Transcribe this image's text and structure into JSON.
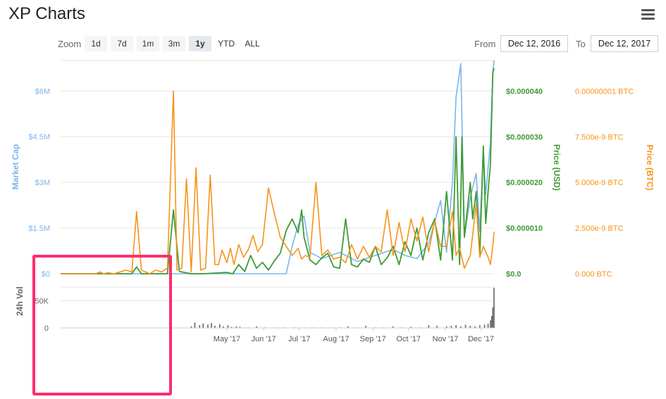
{
  "header": {
    "title": "XP Charts"
  },
  "toolbar": {
    "zoom_label": "Zoom",
    "zoom_buttons": [
      "1d",
      "7d",
      "1m",
      "3m",
      "1y",
      "YTD",
      "ALL"
    ],
    "active_zoom": "1y",
    "from_label": "From",
    "from_value": "Dec 12, 2016",
    "to_label": "To",
    "to_value": "Dec 12, 2017"
  },
  "chart_data": {
    "type": "line",
    "x_ticks": [
      "May '17",
      "Jun '17",
      "Jul '17",
      "Aug '17",
      "Sep '17",
      "Oct '17",
      "Nov '17",
      "Dec '17"
    ],
    "x_tick_days": [
      140,
      171,
      201,
      232,
      263,
      293,
      324,
      354
    ],
    "x_range": [
      0,
      365
    ],
    "axes": {
      "market_cap": {
        "label": "Market Cap",
        "ticks": [
          "$0",
          "$1.5M",
          "$3M",
          "$4.5M",
          "$6M"
        ],
        "tick_values": [
          0,
          1.5,
          3,
          4.5,
          6
        ],
        "range": [
          0,
          7
        ],
        "color": "#7cb5ec"
      },
      "price_usd": {
        "label": "Price (USD)",
        "ticks": [
          "$0.0",
          "$0.000010",
          "$0.000020",
          "$0.000030",
          "$0.000040"
        ],
        "tick_values": [
          0,
          10,
          20,
          30,
          40
        ],
        "range": [
          0,
          46.7
        ],
        "color": "#3d9b35"
      },
      "price_btc": {
        "label": "Price (BTC)",
        "ticks": [
          "0.000 BTC",
          "2.500e-9 BTC",
          "5.000e-9 BTC",
          "7.500e-9 BTC",
          "0.00000001 BTC"
        ],
        "tick_values": [
          0,
          2.5,
          5,
          7.5,
          10
        ],
        "range": [
          0,
          11.67
        ],
        "color": "#f7931a"
      },
      "volume": {
        "label": "24h Vol",
        "ticks": [
          "0",
          "50K"
        ],
        "tick_values": [
          0,
          50
        ],
        "range": [
          0,
          75
        ],
        "color": "#666666"
      }
    },
    "series": [
      {
        "name": "Market Cap",
        "axis": "market_cap",
        "color": "#7cb5ec",
        "x": [
          0,
          180,
          190,
          195,
          200,
          205,
          210,
          220,
          235,
          250,
          265,
          280,
          290,
          300,
          310,
          320,
          325,
          330,
          333,
          337,
          340,
          345,
          350,
          353,
          356,
          358,
          360,
          362,
          364,
          365
        ],
        "values": [
          0,
          0,
          0,
          0.9,
          1.6,
          1.9,
          0.7,
          0.5,
          0.7,
          0.4,
          0.6,
          0.8,
          0.6,
          0.5,
          1.0,
          2.4,
          0.7,
          3.0,
          5.8,
          6.9,
          1.2,
          2.5,
          3.3,
          1.4,
          4.0,
          2.6,
          3.5,
          4.3,
          6.6,
          7.0
        ]
      },
      {
        "name": "Price (USD)",
        "axis": "price_usd",
        "color": "#3d9b35",
        "x": [
          0,
          30,
          60,
          64,
          68,
          90,
          95,
          100,
          110,
          120,
          140,
          145,
          150,
          155,
          160,
          165,
          170,
          175,
          180,
          185,
          190,
          195,
          200,
          203,
          205,
          208,
          210,
          215,
          220,
          225,
          230,
          235,
          240,
          245,
          250,
          255,
          260,
          265,
          270,
          275,
          280,
          285,
          290,
          295,
          300,
          305,
          310,
          315,
          320,
          325,
          330,
          333,
          336,
          338,
          340,
          345,
          347,
          350,
          353,
          356,
          358,
          360,
          362,
          364,
          365
        ],
        "values": [
          0,
          0,
          0,
          1.5,
          0,
          0,
          14,
          0.5,
          0,
          0,
          0.3,
          0,
          2,
          0.5,
          4,
          1.2,
          2.5,
          0.8,
          2.8,
          4.5,
          9.5,
          12,
          9,
          14,
          8,
          5,
          3,
          2,
          3.5,
          4.5,
          1.5,
          1.2,
          12,
          2,
          1.5,
          3.2,
          2.5,
          6,
          2,
          3.5,
          6,
          2,
          7,
          4,
          10,
          3,
          9,
          12,
          3,
          18,
          3,
          30,
          2,
          30,
          8,
          20,
          12,
          18,
          4,
          28,
          11,
          18,
          24,
          44,
          45
        ]
      },
      {
        "name": "Price (BTC)",
        "axis": "price_btc",
        "color": "#f7931a",
        "x": [
          0,
          30,
          33,
          36,
          40,
          45,
          55,
          60,
          64,
          68,
          75,
          80,
          85,
          90,
          95,
          98,
          102,
          106,
          110,
          114,
          118,
          122,
          126,
          130,
          133,
          136,
          140,
          143,
          146,
          150,
          154,
          158,
          162,
          166,
          170,
          175,
          180,
          185,
          190,
          195,
          200,
          203,
          206,
          210,
          215,
          220,
          225,
          230,
          235,
          240,
          245,
          250,
          255,
          260,
          265,
          270,
          275,
          280,
          285,
          290,
          295,
          300,
          305,
          310,
          315,
          320,
          325,
          330,
          333,
          336,
          340,
          345,
          350,
          353,
          356,
          360,
          362,
          364,
          365
        ],
        "values": [
          0,
          0,
          0.1,
          0,
          0.05,
          0,
          0.2,
          0.1,
          3.4,
          0.2,
          0,
          0.2,
          0.1,
          0.3,
          10,
          0.2,
          0.3,
          5.2,
          0.1,
          5.8,
          0.2,
          0.3,
          5.4,
          0.5,
          0.5,
          1.3,
          0.6,
          1.4,
          0.5,
          1.6,
          0.9,
          1.3,
          2.1,
          1.2,
          1.6,
          4.7,
          3.3,
          2.0,
          1.5,
          1.0,
          1.4,
          0.8,
          1.0,
          0.9,
          5.0,
          1.0,
          1.3,
          0.8,
          0.9,
          0.6,
          1.6,
          0.8,
          1.5,
          0.9,
          1.5,
          1.2,
          3.5,
          1.0,
          2.8,
          1.2,
          3.0,
          1.8,
          3.1,
          1.2,
          2.9,
          1.5,
          1.5,
          3.4,
          1.0,
          1.4,
          0.3,
          1.0,
          3.8,
          0.9,
          1.5,
          0.9,
          0.5,
          1.5,
          2.3
        ]
      },
      {
        "name": "24h Vol",
        "axis": "volume",
        "color": "#666666",
        "x": [
          110,
          113,
          117,
          120,
          124,
          127,
          130,
          134,
          137,
          141,
          144,
          148,
          151,
          158,
          165,
          172,
          180,
          188,
          197,
          205,
          212,
          220,
          227,
          235,
          242,
          250,
          257,
          265,
          272,
          280,
          287,
          295,
          302,
          310,
          317,
          325,
          329,
          333,
          337,
          341,
          345,
          349,
          353,
          357,
          360,
          362,
          363,
          364,
          365
        ],
        "values": [
          3,
          10,
          5,
          8,
          6,
          9,
          4,
          7,
          3,
          5,
          2,
          3,
          2,
          1,
          3,
          1,
          1,
          1,
          1,
          1,
          1,
          1,
          1,
          1,
          3,
          1,
          4,
          1,
          1,
          3,
          1,
          2,
          1,
          5,
          4,
          3,
          4,
          5,
          3,
          6,
          4,
          3,
          5,
          6,
          8,
          14,
          22,
          38,
          74
        ]
      }
    ]
  }
}
